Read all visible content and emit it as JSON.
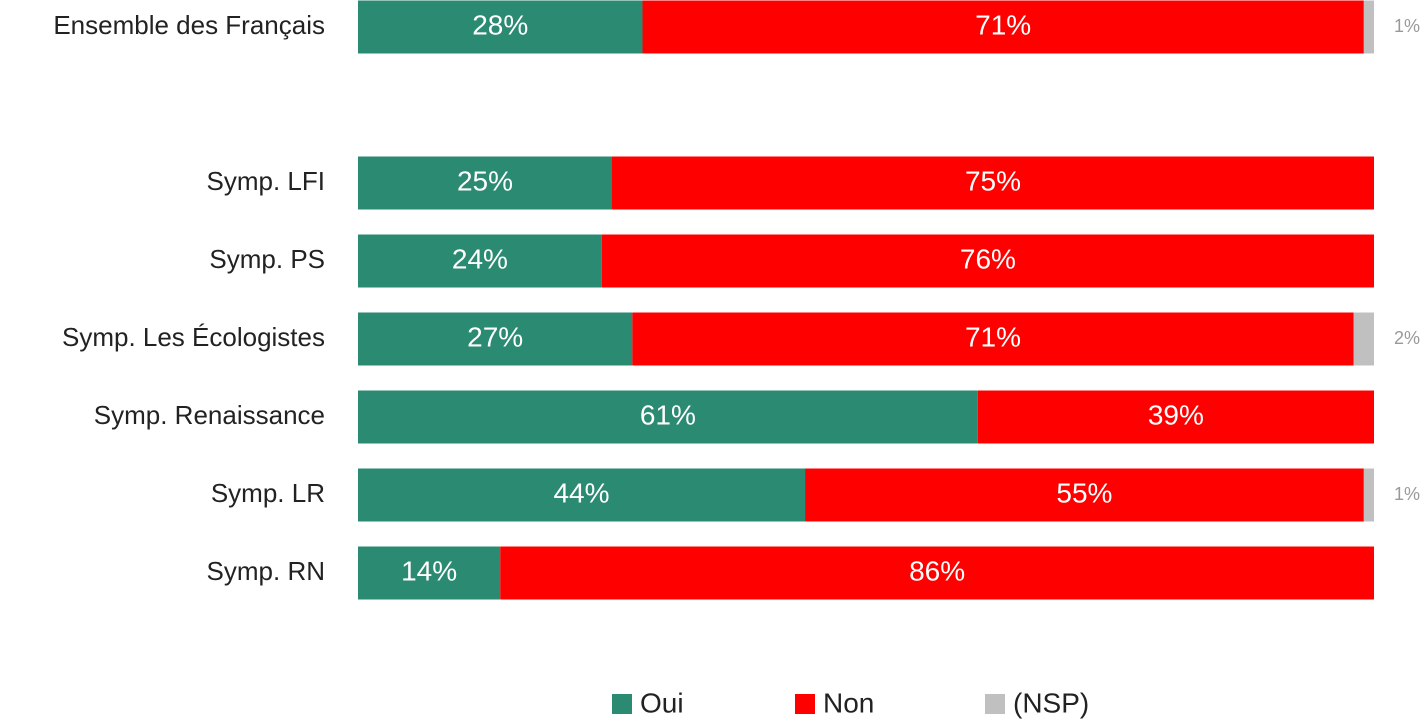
{
  "chart_data": {
    "type": "bar",
    "orientation": "horizontal",
    "stacked": true,
    "categories": [
      "Ensemble des Français",
      "Symp. LFI",
      "Symp. PS",
      "Symp. Les Écologistes",
      "Symp. Renaissance",
      "Symp. LR",
      "Symp. RN"
    ],
    "series": [
      {
        "name": "Oui",
        "color": "#2a8a72",
        "values": [
          28,
          25,
          24,
          27,
          61,
          44,
          14
        ],
        "value_labels": [
          "28%",
          "25%",
          "24%",
          "27%",
          "61%",
          "44%",
          "14%"
        ]
      },
      {
        "name": "Non",
        "color": "#ff0000",
        "values": [
          71,
          75,
          76,
          71,
          39,
          55,
          86
        ],
        "value_labels": [
          "71%",
          "75%",
          "76%",
          "71%",
          "39%",
          "55%",
          "86%"
        ]
      },
      {
        "name": "(NSP)",
        "color": "#c0c0c0",
        "values": [
          1,
          0,
          0,
          2,
          0,
          1,
          0
        ],
        "value_labels": [
          "1%",
          null,
          null,
          "2%",
          null,
          "1%",
          null
        ]
      }
    ],
    "legend": "bottom"
  }
}
